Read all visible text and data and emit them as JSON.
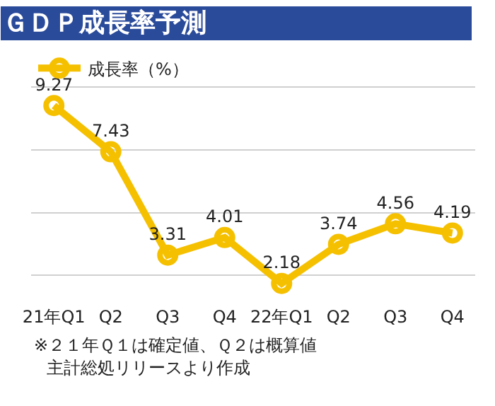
{
  "chart_data": {
    "type": "line",
    "title": "ＧＤＰ成長率予測",
    "categories": [
      "21年Q1",
      "Q2",
      "Q3",
      "Q4",
      "22年Q1",
      "Q2",
      "Q3",
      "Q4"
    ],
    "series": [
      {
        "name": "成長率（%）",
        "color": "#f5c000",
        "values": [
          9.27,
          7.43,
          3.31,
          4.01,
          2.18,
          3.74,
          4.56,
          4.19
        ]
      }
    ],
    "tick_labels": "x",
    "grid": "y",
    "legend": "top left",
    "marker": "circle",
    "line_style": "solid",
    "data_labels": true,
    "annotations": [
      "※２１年Ｑ１は確定値、Ｑ２は概算値",
      "主計総処リリースより作成"
    ]
  }
}
